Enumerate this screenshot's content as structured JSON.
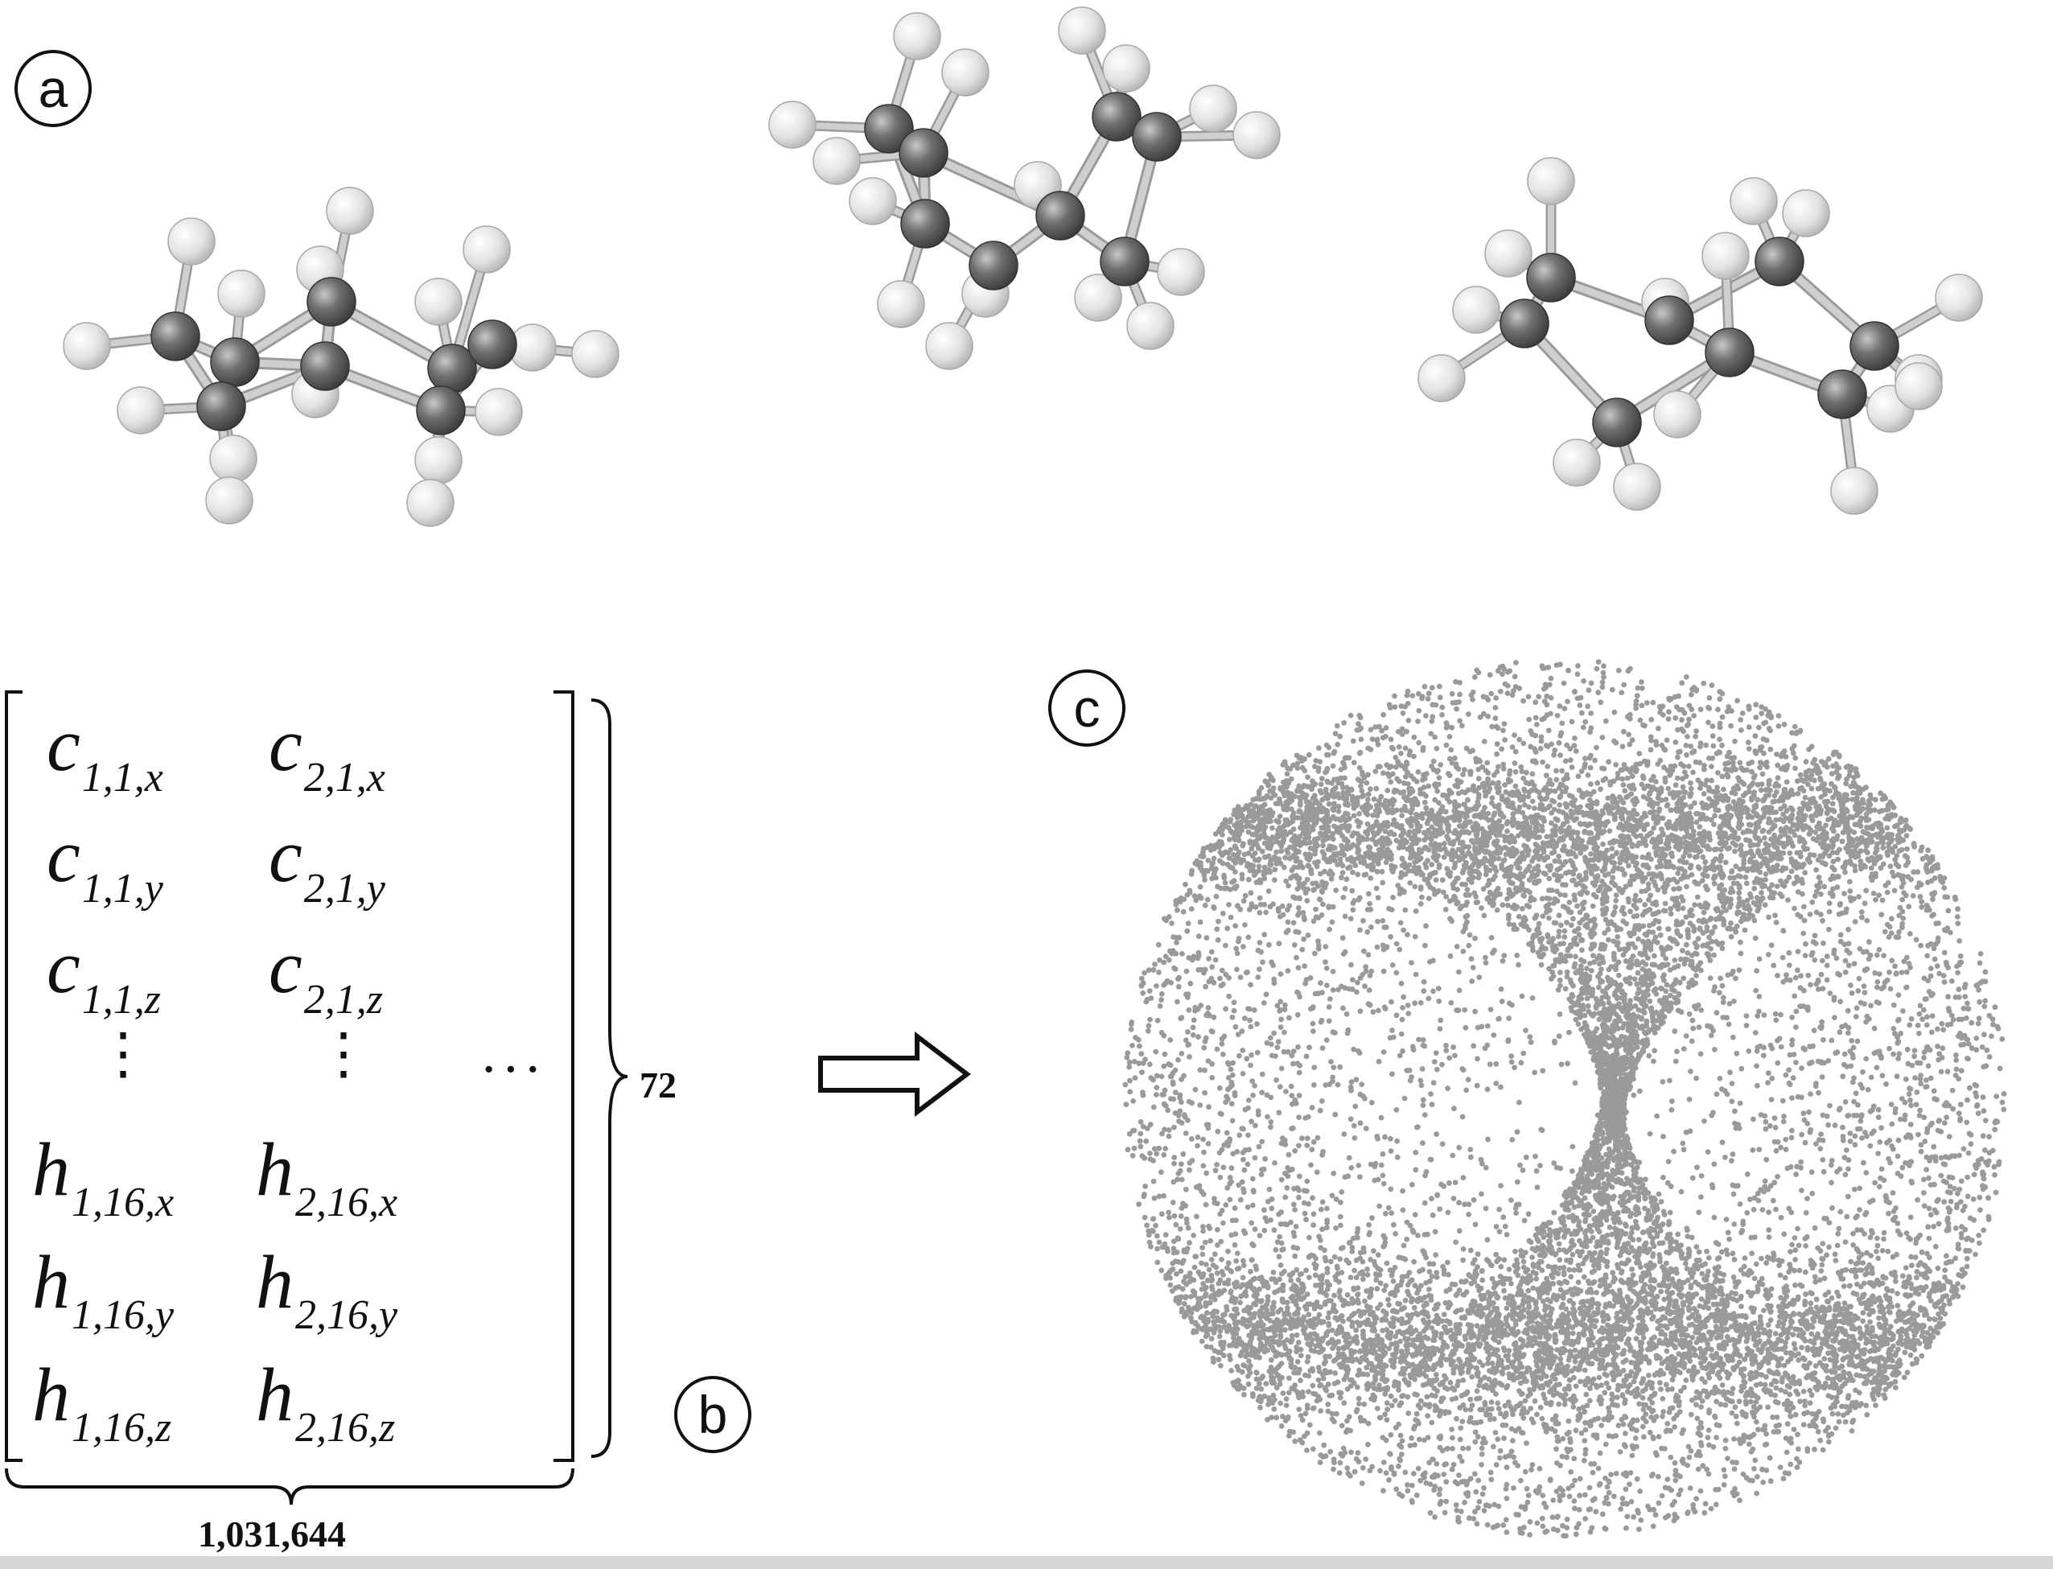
{
  "panels": {
    "a": "a",
    "b": "b",
    "c": "c"
  },
  "matrix": {
    "rows": [
      {
        "col1_base": "c",
        "col1_sub": "1,1,x",
        "col2_base": "c",
        "col2_sub": "2,1,x"
      },
      {
        "col1_base": "c",
        "col1_sub": "1,1,y",
        "col2_base": "c",
        "col2_sub": "2,1,y"
      },
      {
        "col1_base": "c",
        "col1_sub": "1,1,z",
        "col2_base": "c",
        "col2_sub": "2,1,z"
      },
      {
        "col1_base": "h",
        "col1_sub": "1,16,x",
        "col2_base": "h",
        "col2_sub": "2,16,x"
      },
      {
        "col1_base": "h",
        "col1_sub": "1,16,y",
        "col2_base": "h",
        "col2_sub": "2,16,y"
      },
      {
        "col1_base": "h",
        "col1_sub": "1,16,z",
        "col2_base": "h",
        "col2_sub": "2,16,z"
      }
    ],
    "vertical_ellipsis": "⋮",
    "horizontal_ellipsis": "···",
    "row_count": "72",
    "column_count": "1,031,644"
  },
  "colors": {
    "carbon": "#6e6e6e",
    "hydrogen": "#dcdcdc",
    "bond": "#cfcfcf",
    "scatter_points": "#9a9a9a",
    "ink": "#111111"
  },
  "icons": {
    "arrow": "right-hollow-arrow-icon"
  }
}
